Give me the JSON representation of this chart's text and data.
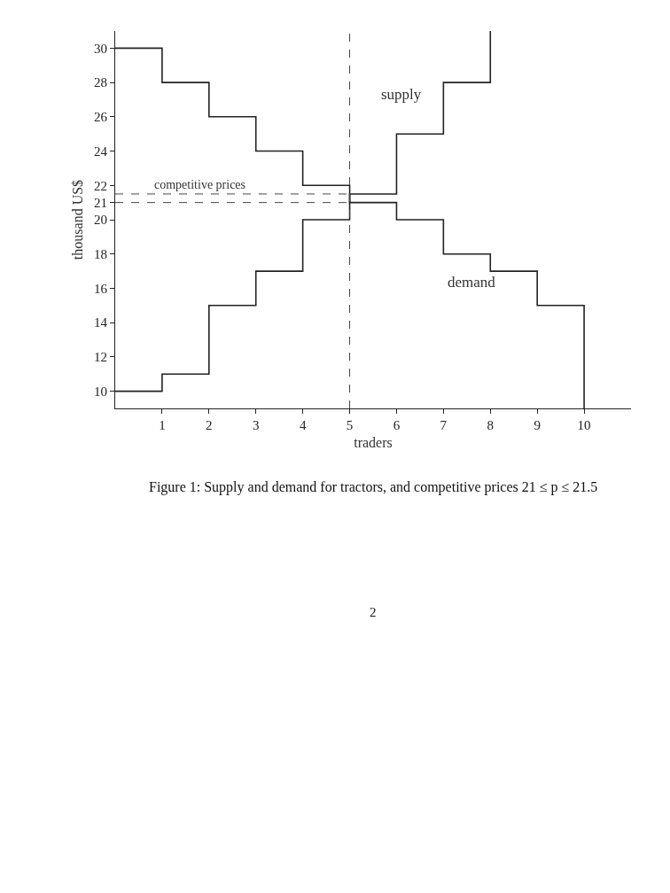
{
  "chart_data": {
    "type": "step",
    "xlabel": "traders",
    "ylabel": "thousand US$",
    "series": [
      {
        "name": "demand",
        "color": "#222222",
        "x": [
          0,
          1,
          2,
          3,
          4,
          5,
          6,
          7,
          8,
          9,
          10
        ],
        "values": [
          30,
          28,
          26,
          24,
          22,
          21,
          20,
          18,
          17,
          15,
          9
        ]
      },
      {
        "name": "supply",
        "color": "#222222",
        "x": [
          0,
          1,
          2,
          3,
          4,
          5,
          6,
          7,
          8
        ],
        "values": [
          10,
          11,
          15,
          17,
          20,
          21.5,
          25,
          28,
          31
        ]
      }
    ],
    "xlim": [
      0,
      11
    ],
    "xticks": [
      1,
      2,
      3,
      4,
      5,
      6,
      7,
      8,
      9,
      10
    ],
    "ylim": [
      9,
      31
    ],
    "yticks": [
      10,
      12,
      14,
      16,
      18,
      20,
      21,
      22,
      24,
      26,
      28,
      30
    ],
    "ref_lines": [
      {
        "axis": "x",
        "value": 5,
        "line_style": "dashed",
        "color": "#444444"
      },
      {
        "axis": "y",
        "value": 21,
        "line_style": "dashed",
        "color": "#444444"
      },
      {
        "axis": "y",
        "value": 21.5,
        "line_style": "dashed",
        "color": "#444444",
        "label": "competitive prices"
      }
    ],
    "annotations": [
      "Figure 1: Supply and demand for tractors, and competitive prices 21 ≤ p ≤ 21.5",
      "2"
    ],
    "legend": false,
    "marker": "none",
    "line_style": "solid"
  }
}
